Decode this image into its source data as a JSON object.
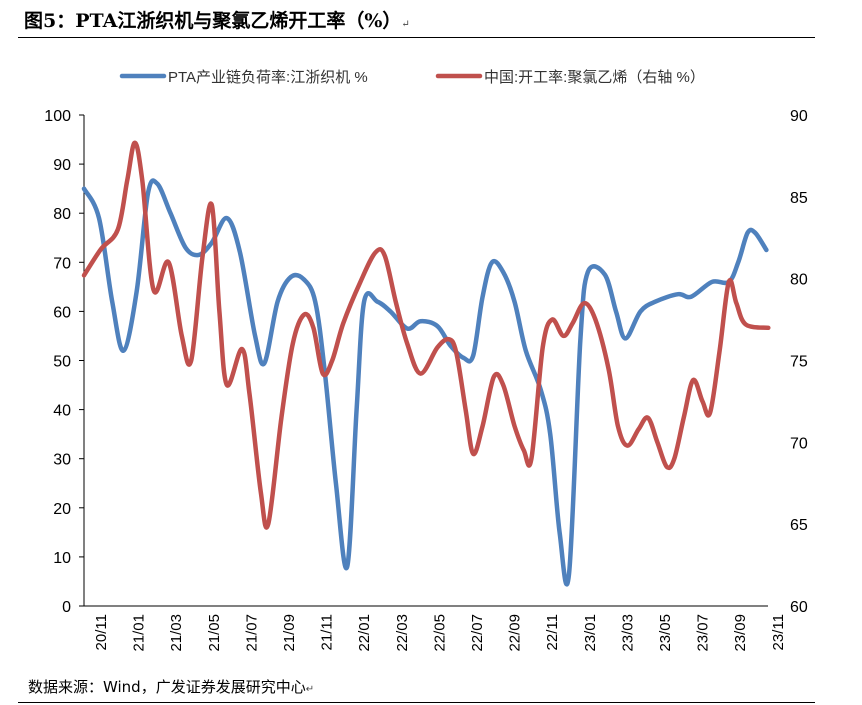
{
  "figure": {
    "title": "图5：PTA江浙织机与聚氯乙烯开工率（%）",
    "title_return_mark": "↵",
    "source": "数据来源：Wind，广发证券发展研究中心",
    "source_return_mark": "↵"
  },
  "chart_data": {
    "type": "line",
    "grid": false,
    "legend_position": "top",
    "left_axis": {
      "ylim": [
        0,
        100
      ],
      "ticks": [
        "0",
        "10",
        "20",
        "30",
        "40",
        "50",
        "60",
        "70",
        "80",
        "90",
        "100"
      ]
    },
    "right_axis": {
      "ylim": [
        60,
        90
      ],
      "ticks": [
        "60",
        "65",
        "70",
        "75",
        "80",
        "85",
        "90"
      ]
    },
    "x_tick_labels": [
      "20/11",
      "21/01",
      "21/03",
      "21/05",
      "21/07",
      "21/09",
      "21/11",
      "22/01",
      "22/03",
      "22/05",
      "22/07",
      "22/09",
      "22/11",
      "23/01",
      "23/03",
      "23/05",
      "23/07",
      "23/09",
      "23/11"
    ],
    "x_range": [
      0,
      36.4
    ],
    "series": [
      {
        "name": "PTA产业链负荷率:江浙织机 %",
        "axis": "left",
        "color": "#4f81bd",
        "points": [
          [
            0,
            85
          ],
          [
            0.8,
            79
          ],
          [
            1.5,
            62
          ],
          [
            2.1,
            52
          ],
          [
            2.8,
            64
          ],
          [
            3.4,
            84
          ],
          [
            3.9,
            86
          ],
          [
            4.6,
            80
          ],
          [
            5.4,
            73
          ],
          [
            6.1,
            71.5
          ],
          [
            6.8,
            74
          ],
          [
            7.6,
            79
          ],
          [
            8.3,
            72
          ],
          [
            9.1,
            55
          ],
          [
            9.6,
            49.5
          ],
          [
            10.3,
            62
          ],
          [
            11.0,
            67
          ],
          [
            11.7,
            66.5
          ],
          [
            12.3,
            62
          ],
          [
            12.8,
            48
          ],
          [
            13.4,
            25
          ],
          [
            14.0,
            8
          ],
          [
            14.5,
            40
          ],
          [
            14.9,
            62
          ],
          [
            15.6,
            62
          ],
          [
            16.3,
            60
          ],
          [
            17.2,
            56.5
          ],
          [
            17.9,
            58
          ],
          [
            18.8,
            57
          ],
          [
            19.5,
            53
          ],
          [
            20.2,
            50.5
          ],
          [
            20.7,
            51
          ],
          [
            21.2,
            63
          ],
          [
            21.7,
            70
          ],
          [
            22.3,
            68
          ],
          [
            22.9,
            62
          ],
          [
            23.5,
            52
          ],
          [
            24.3,
            44
          ],
          [
            24.8,
            35
          ],
          [
            25.3,
            15
          ],
          [
            25.8,
            6.5
          ],
          [
            26.4,
            54
          ],
          [
            26.8,
            68
          ],
          [
            27.7,
            67.5
          ],
          [
            28.3,
            60
          ],
          [
            28.8,
            54.5
          ],
          [
            29.6,
            60
          ],
          [
            30.4,
            62
          ],
          [
            31.6,
            63.5
          ],
          [
            32.3,
            63
          ],
          [
            33.4,
            66
          ],
          [
            34.3,
            66
          ],
          [
            34.8,
            70
          ],
          [
            35.3,
            76
          ],
          [
            35.7,
            76
          ],
          [
            36.3,
            72.5
          ]
        ]
      },
      {
        "name": "中国:开工率:聚氯乙烯（右轴 %）",
        "axis": "right",
        "color": "#c0504d",
        "points": [
          [
            0,
            80.2
          ],
          [
            0.9,
            81.8
          ],
          [
            1.8,
            83
          ],
          [
            2.3,
            86
          ],
          [
            2.7,
            88.3
          ],
          [
            3.1,
            86
          ],
          [
            3.7,
            79.3
          ],
          [
            4.5,
            81
          ],
          [
            5.2,
            76.5
          ],
          [
            5.7,
            75
          ],
          [
            6.3,
            81.3
          ],
          [
            6.8,
            84.5
          ],
          [
            7.2,
            78
          ],
          [
            7.6,
            73.5
          ],
          [
            8.4,
            75.7
          ],
          [
            8.8,
            73
          ],
          [
            9.4,
            67
          ],
          [
            9.8,
            65
          ],
          [
            10.5,
            71.5
          ],
          [
            11.1,
            76
          ],
          [
            11.7,
            77.8
          ],
          [
            12.2,
            77
          ],
          [
            12.7,
            74.2
          ],
          [
            13.2,
            75
          ],
          [
            13.8,
            77.3
          ],
          [
            14.7,
            79.8
          ],
          [
            15.5,
            81.6
          ],
          [
            16.0,
            81.4
          ],
          [
            16.6,
            78.5
          ],
          [
            17.2,
            76
          ],
          [
            17.9,
            74.2
          ],
          [
            18.8,
            75.8
          ],
          [
            19.4,
            76.3
          ],
          [
            19.8,
            75.5
          ],
          [
            20.3,
            72
          ],
          [
            20.7,
            69.3
          ],
          [
            21.2,
            71
          ],
          [
            21.8,
            74
          ],
          [
            22.3,
            73.5
          ],
          [
            22.9,
            71
          ],
          [
            23.4,
            69.5
          ],
          [
            23.8,
            69
          ],
          [
            24.4,
            75.8
          ],
          [
            24.9,
            77.5
          ],
          [
            25.5,
            76.5
          ],
          [
            26.0,
            77.3
          ],
          [
            26.6,
            78.5
          ],
          [
            27.2,
            77.5
          ],
          [
            27.9,
            74.5
          ],
          [
            28.4,
            71
          ],
          [
            28.9,
            69.8
          ],
          [
            29.5,
            70.8
          ],
          [
            30.0,
            71.5
          ],
          [
            30.5,
            70
          ],
          [
            31.0,
            68.5
          ],
          [
            31.4,
            69
          ],
          [
            31.9,
            71.5
          ],
          [
            32.4,
            73.8
          ],
          [
            32.9,
            72.5
          ],
          [
            33.3,
            71.8
          ],
          [
            33.8,
            75.5
          ],
          [
            34.3,
            79.8
          ],
          [
            34.7,
            78.5
          ],
          [
            35.2,
            77.2
          ],
          [
            36.4,
            77
          ]
        ]
      }
    ]
  },
  "colors": {
    "axis": "#000000",
    "text": "#000000"
  }
}
